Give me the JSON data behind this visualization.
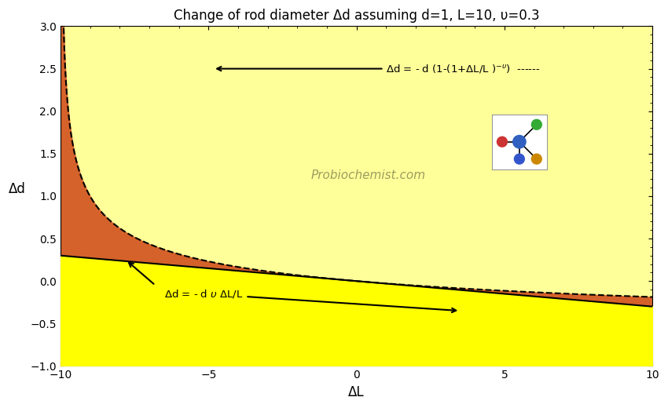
{
  "title": "Change of rod diameter Δd assuming d=1, L=10, υ=0.3",
  "xlabel": "ΔL",
  "ylabel": "Δd",
  "xlim": [
    -10,
    10
  ],
  "ylim": [
    -1,
    3
  ],
  "d": 1,
  "L": 10,
  "nu": 0.3,
  "color_orange": "#D4622A",
  "color_yellow_bright": "#FFFF00",
  "color_yellow_light": "#FFFF99",
  "watermark": "Probiochemist.com",
  "title_fontsize": 12,
  "axis_label_fontsize": 12,
  "tick_fontsize": 10
}
